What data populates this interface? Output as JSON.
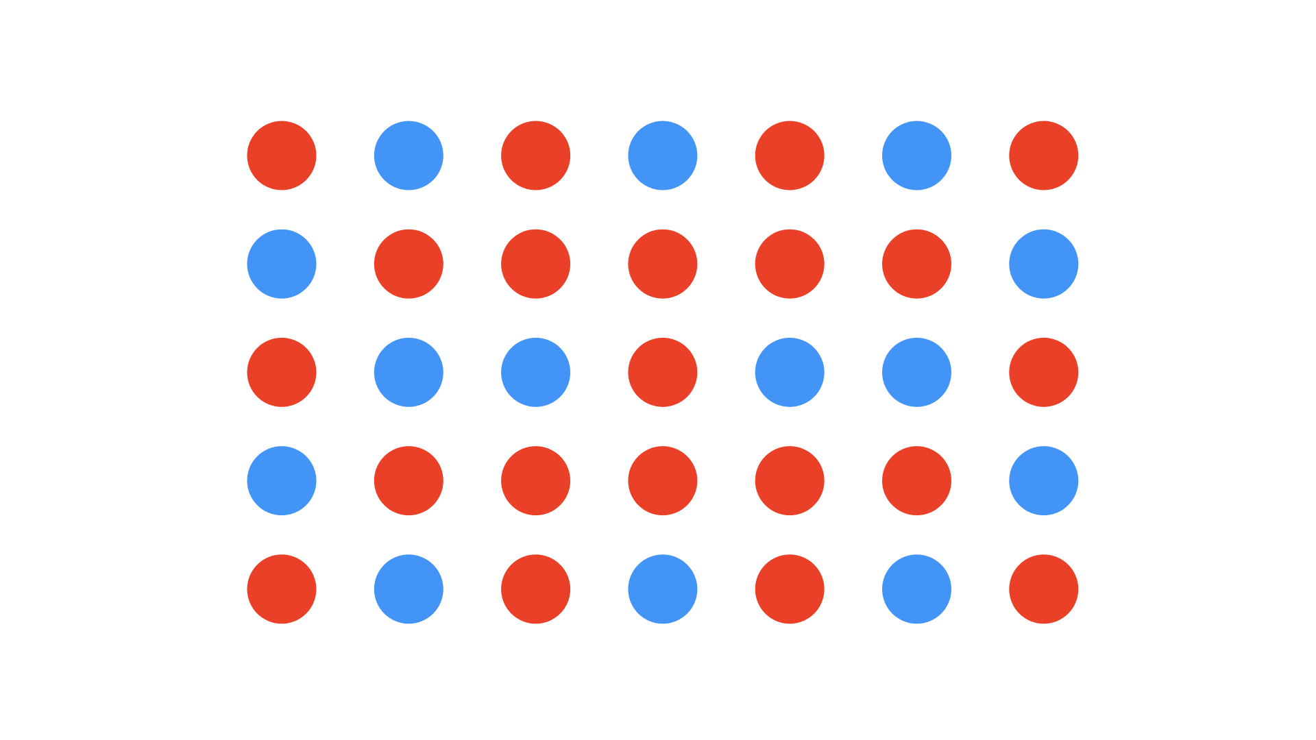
{
  "colors": {
    "background": "#ffffff",
    "red": "#E94027",
    "blue": "#4394F7"
  },
  "dot_grid": {
    "rows": [
      [
        "red",
        "blue",
        "red",
        "blue",
        "red",
        "blue",
        "red"
      ],
      [
        "blue",
        "red",
        "red",
        "red",
        "red",
        "red",
        "blue"
      ],
      [
        "red",
        "blue",
        "blue",
        "red",
        "blue",
        "blue",
        "red"
      ],
      [
        "blue",
        "red",
        "red",
        "red",
        "red",
        "red",
        "blue"
      ],
      [
        "red",
        "blue",
        "red",
        "blue",
        "red",
        "blue",
        "red"
      ]
    ]
  }
}
